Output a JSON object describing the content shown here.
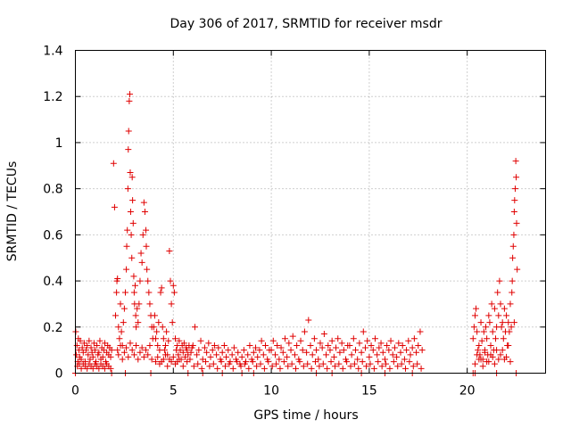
{
  "chart_data": {
    "type": "scatter",
    "title": "Day 306 of 2017, SRMTID for receiver msdr",
    "xlabel": "GPS time / hours",
    "ylabel": "SRMTID / TECUs",
    "xlim": [
      0,
      24
    ],
    "ylim": [
      0,
      1.4
    ],
    "xticks": [
      0,
      5,
      10,
      15,
      20
    ],
    "xtick_labels": [
      "0",
      "5",
      "10",
      "15",
      "20"
    ],
    "yticks": [
      0,
      0.2,
      0.4,
      0.6,
      0.8,
      1.0,
      1.2,
      1.4
    ],
    "ytick_labels": [
      "0",
      "0.2",
      "0.4",
      "0.6",
      "0.8",
      "1",
      "1.2",
      "1.4"
    ],
    "grid": true,
    "marker": "plus",
    "marker_color": "#e00000",
    "series": [
      {
        "x": [
          0.02,
          0.05,
          0.08,
          0.12,
          0.15,
          0.18,
          0.22,
          0.25,
          0.3,
          0.35,
          0.4,
          0.45,
          0.5,
          0.55,
          0.6,
          0.65,
          0.7,
          0.75,
          0.8,
          0.85,
          0.9,
          0.95,
          1.0,
          1.05,
          1.1,
          1.15,
          1.2,
          1.25,
          1.3,
          1.35,
          1.4,
          1.45,
          1.5,
          1.55,
          1.6,
          1.65,
          1.7,
          1.75,
          1.8,
          1.85,
          0.1,
          0.2,
          0.3,
          0.4,
          0.5,
          0.6,
          0.7,
          0.8,
          0.9,
          1.0,
          1.1,
          1.2,
          1.3,
          1.4,
          1.5,
          1.6,
          1.7,
          1.8,
          1.95,
          2.0,
          2.05,
          2.1,
          2.12,
          2.15,
          2.2,
          2.25,
          2.3,
          2.35,
          2.4,
          2.45,
          2.5,
          2.55,
          2.6,
          2.62,
          2.65,
          2.68,
          2.7,
          2.72,
          2.75,
          2.78,
          2.8,
          2.82,
          2.85,
          2.88,
          2.9,
          2.92,
          2.95,
          2.98,
          3.0,
          3.02,
          3.05,
          3.08,
          3.1,
          3.15,
          3.2,
          3.25,
          3.3,
          3.35,
          3.4,
          3.45,
          3.5,
          3.55,
          3.6,
          3.62,
          3.65,
          3.7,
          3.75,
          3.8,
          3.85,
          3.9,
          3.95,
          2.15,
          2.2,
          2.3,
          2.4,
          2.5,
          2.6,
          2.7,
          2.8,
          2.9,
          3.0,
          3.1,
          3.2,
          3.3,
          3.4,
          3.5,
          3.6,
          3.7,
          3.8,
          3.9,
          4.0,
          4.05,
          4.1,
          4.15,
          4.2,
          4.25,
          4.3,
          4.35,
          4.4,
          4.45,
          4.5,
          4.55,
          4.6,
          4.65,
          4.7,
          4.75,
          4.8,
          4.85,
          4.9,
          4.95,
          5.0,
          5.05,
          5.1,
          5.15,
          5.2,
          5.25,
          5.3,
          5.35,
          5.4,
          5.45,
          5.5,
          5.55,
          5.6,
          5.65,
          5.7,
          5.75,
          5.8,
          5.85,
          5.9,
          5.95,
          4.1,
          4.3,
          4.5,
          4.7,
          4.9,
          5.1,
          5.3,
          5.5,
          5.7,
          4.2,
          4.4,
          4.6,
          4.8,
          5.0,
          5.2,
          6.0,
          6.1,
          6.2,
          6.3,
          6.4,
          6.5,
          6.6,
          6.7,
          6.8,
          6.9,
          7.0,
          7.1,
          7.2,
          7.3,
          7.4,
          7.5,
          7.6,
          7.7,
          7.8,
          7.9,
          8.0,
          8.1,
          8.2,
          8.3,
          8.4,
          8.5,
          8.6,
          8.7,
          8.8,
          8.9,
          9.0,
          9.1,
          9.2,
          9.3,
          9.4,
          9.5,
          9.6,
          9.7,
          9.8,
          9.9,
          6.05,
          6.25,
          6.45,
          6.65,
          6.85,
          7.05,
          7.25,
          7.45,
          7.65,
          7.85,
          8.05,
          8.25,
          8.45,
          8.65,
          8.85,
          9.05,
          9.25,
          9.45,
          9.65,
          9.85,
          10.0,
          10.1,
          10.2,
          10.3,
          10.4,
          10.5,
          10.6,
          10.7,
          10.8,
          10.9,
          11.0,
          11.1,
          11.2,
          11.3,
          11.4,
          11.5,
          11.6,
          11.7,
          11.8,
          11.9,
          12.0,
          12.1,
          12.2,
          12.3,
          12.4,
          12.5,
          12.6,
          12.7,
          12.8,
          12.9,
          13.0,
          13.1,
          13.2,
          13.3,
          13.4,
          13.5,
          13.6,
          13.7,
          13.8,
          13.9,
          10.05,
          10.25,
          10.45,
          10.65,
          10.85,
          11.05,
          11.25,
          11.45,
          11.65,
          11.85,
          12.05,
          12.25,
          12.45,
          12.65,
          12.85,
          13.05,
          13.25,
          13.45,
          13.65,
          13.85,
          14.0,
          14.1,
          14.2,
          14.3,
          14.4,
          14.5,
          14.6,
          14.7,
          14.8,
          14.9,
          15.0,
          15.1,
          15.2,
          15.3,
          15.4,
          15.5,
          15.6,
          15.7,
          15.8,
          15.9,
          16.0,
          16.1,
          16.2,
          16.3,
          16.4,
          16.5,
          16.6,
          16.7,
          16.8,
          16.9,
          17.0,
          17.1,
          17.2,
          17.3,
          17.4,
          17.5,
          17.6,
          17.7,
          14.05,
          14.25,
          14.45,
          14.65,
          14.85,
          15.05,
          15.25,
          15.45,
          15.65,
          15.85,
          16.05,
          16.25,
          16.45,
          16.65,
          16.85,
          17.05,
          17.25,
          17.45,
          17.65,
          20.3,
          20.35,
          20.4,
          20.45,
          20.5,
          20.55,
          20.6,
          20.65,
          20.7,
          20.75,
          20.8,
          20.85,
          20.9,
          20.95,
          21.0,
          21.05,
          21.1,
          21.15,
          21.2,
          21.25,
          21.3,
          21.35,
          21.4,
          21.45,
          21.5,
          21.55,
          21.6,
          21.65,
          21.7,
          21.75,
          21.8,
          21.85,
          21.9,
          21.95,
          22.0,
          22.05,
          22.1,
          22.15,
          22.2,
          22.25,
          22.28,
          22.3,
          22.32,
          22.35,
          22.38,
          22.4,
          22.42,
          22.45,
          22.48,
          22.5,
          22.52,
          22.55,
          20.4,
          20.6,
          20.8,
          21.0,
          21.2,
          21.4,
          21.6,
          21.8,
          22.0,
          22.2,
          22.4,
          20.5,
          20.7,
          20.9,
          21.1,
          21.3,
          21.5,
          21.7,
          21.9,
          22.1
        ],
        "y": [
          0.18,
          0.08,
          0.12,
          0.05,
          0.15,
          0.1,
          0.07,
          0.14,
          0.06,
          0.11,
          0.09,
          0.13,
          0.05,
          0.1,
          0.12,
          0.08,
          0.14,
          0.06,
          0.11,
          0.09,
          0.07,
          0.13,
          0.1,
          0.05,
          0.12,
          0.08,
          0.09,
          0.14,
          0.06,
          0.11,
          0.07,
          0.1,
          0.13,
          0.05,
          0.09,
          0.12,
          0.08,
          0.11,
          0.07,
          0.1,
          0.03,
          0.04,
          0.02,
          0.04,
          0.03,
          0.02,
          0.04,
          0.03,
          0.02,
          0.04,
          0.03,
          0.02,
          0.04,
          0.03,
          0.02,
          0.04,
          0.03,
          0.02,
          0.91,
          0.72,
          0.25,
          0.35,
          0.4,
          0.41,
          0.2,
          0.15,
          0.3,
          0.18,
          0.12,
          0.22,
          0.28,
          0.35,
          0.45,
          0.55,
          0.62,
          0.8,
          0.97,
          1.05,
          1.18,
          1.21,
          0.87,
          0.7,
          0.6,
          0.5,
          0.85,
          0.75,
          0.65,
          0.42,
          0.35,
          0.3,
          0.38,
          0.25,
          0.2,
          0.28,
          0.22,
          0.3,
          0.4,
          0.52,
          0.48,
          0.6,
          0.74,
          0.7,
          0.62,
          0.55,
          0.45,
          0.4,
          0.35,
          0.3,
          0.25,
          0.2,
          0.15,
          0.1,
          0.08,
          0.12,
          0.06,
          0.09,
          0.11,
          0.07,
          0.13,
          0.1,
          0.08,
          0.12,
          0.06,
          0.09,
          0.11,
          0.07,
          0.1,
          0.08,
          0.12,
          0.06,
          0.2,
          0.25,
          0.15,
          0.18,
          0.12,
          0.22,
          0.1,
          0.35,
          0.37,
          0.2,
          0.15,
          0.1,
          0.12,
          0.18,
          0.08,
          0.14,
          0.53,
          0.4,
          0.3,
          0.22,
          0.38,
          0.35,
          0.15,
          0.1,
          0.12,
          0.08,
          0.14,
          0.1,
          0.06,
          0.12,
          0.09,
          0.13,
          0.07,
          0.11,
          0.1,
          0.08,
          0.12,
          0.06,
          0.09,
          0.11,
          0.05,
          0.04,
          0.06,
          0.03,
          0.05,
          0.04,
          0.06,
          0.03,
          0.05,
          0.07,
          0.05,
          0.08,
          0.06,
          0.07,
          0.05,
          0.12,
          0.2,
          0.08,
          0.1,
          0.14,
          0.06,
          0.11,
          0.09,
          0.13,
          0.07,
          0.1,
          0.12,
          0.08,
          0.11,
          0.06,
          0.09,
          0.12,
          0.07,
          0.1,
          0.05,
          0.08,
          0.11,
          0.06,
          0.09,
          0.04,
          0.07,
          0.1,
          0.05,
          0.08,
          0.12,
          0.06,
          0.09,
          0.11,
          0.07,
          0.1,
          0.14,
          0.08,
          0.12,
          0.06,
          0.1,
          0.03,
          0.04,
          0.02,
          0.05,
          0.03,
          0.04,
          0.02,
          0.05,
          0.03,
          0.04,
          0.02,
          0.05,
          0.03,
          0.04,
          0.02,
          0.05,
          0.03,
          0.04,
          0.02,
          0.05,
          0.1,
          0.14,
          0.08,
          0.12,
          0.06,
          0.11,
          0.09,
          0.15,
          0.07,
          0.13,
          0.1,
          0.16,
          0.08,
          0.12,
          0.06,
          0.14,
          0.1,
          0.18,
          0.09,
          0.23,
          0.12,
          0.08,
          0.15,
          0.1,
          0.06,
          0.13,
          0.11,
          0.17,
          0.08,
          0.12,
          0.1,
          0.14,
          0.07,
          0.11,
          0.15,
          0.09,
          0.13,
          0.1,
          0.06,
          0.12,
          0.03,
          0.04,
          0.02,
          0.05,
          0.03,
          0.04,
          0.02,
          0.05,
          0.03,
          0.04,
          0.02,
          0.05,
          0.03,
          0.04,
          0.02,
          0.05,
          0.03,
          0.04,
          0.02,
          0.05,
          0.12,
          0.08,
          0.15,
          0.1,
          0.06,
          0.13,
          0.09,
          0.18,
          0.11,
          0.14,
          0.07,
          0.12,
          0.1,
          0.15,
          0.08,
          0.11,
          0.13,
          0.09,
          0.06,
          0.12,
          0.1,
          0.14,
          0.08,
          0.11,
          0.07,
          0.13,
          0.09,
          0.12,
          0.06,
          0.1,
          0.14,
          0.08,
          0.11,
          0.15,
          0.09,
          0.12,
          0.18,
          0.1,
          0.03,
          0.04,
          0.02,
          0.05,
          0.03,
          0.04,
          0.02,
          0.05,
          0.03,
          0.04,
          0.02,
          0.05,
          0.03,
          0.04,
          0.02,
          0.05,
          0.03,
          0.04,
          0.02,
          0.15,
          0.2,
          0.25,
          0.28,
          0.18,
          0.1,
          0.12,
          0.08,
          0.22,
          0.14,
          0.06,
          0.18,
          0.1,
          0.2,
          0.15,
          0.08,
          0.25,
          0.22,
          0.12,
          0.3,
          0.18,
          0.1,
          0.28,
          0.15,
          0.2,
          0.35,
          0.25,
          0.4,
          0.3,
          0.2,
          0.22,
          0.15,
          0.28,
          0.18,
          0.25,
          0.12,
          0.22,
          0.18,
          0.3,
          0.2,
          0.35,
          0.4,
          0.5,
          0.55,
          0.6,
          0.7,
          0.75,
          0.8,
          0.92,
          0.85,
          0.65,
          0.45,
          0.04,
          0.06,
          0.03,
          0.05,
          0.08,
          0.04,
          0.06,
          0.1,
          0.07,
          0.05,
          0.22,
          0.08,
          0.06,
          0.09,
          0.05,
          0.07,
          0.1,
          0.08,
          0.06,
          0.12
        ]
      },
      {
        "x": [
          0.0,
          1.85,
          2.55,
          3.85,
          5.75,
          6.5,
          7.5,
          8.5,
          9.1,
          12.3,
          13.1,
          14.6,
          15.8,
          17.2,
          20.3,
          20.4,
          21.5,
          22.5
        ],
        "y": [
          0.0,
          0.0,
          0.0,
          0.0,
          0.0,
          0.0,
          0.0,
          0.0,
          0.0,
          0.0,
          0.0,
          0.0,
          0.0,
          0.0,
          0.0,
          0.0,
          0.0,
          0.0
        ]
      }
    ]
  }
}
